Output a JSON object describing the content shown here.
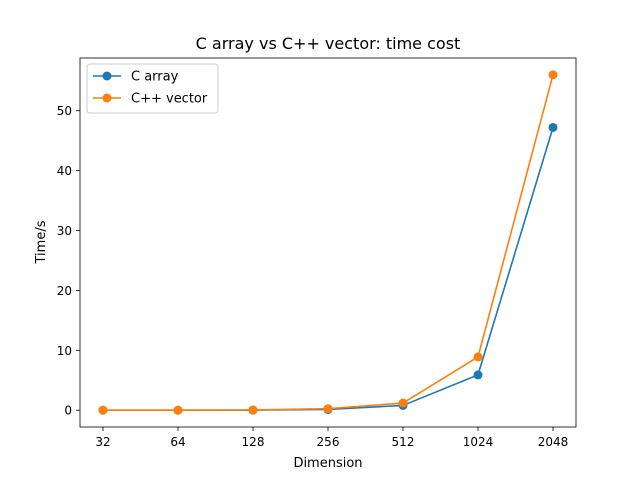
{
  "chart_data": {
    "type": "line",
    "title": "C array vs C++ vector: time cost",
    "xlabel": "Dimension",
    "ylabel": "Time/s",
    "categories": [
      "32",
      "64",
      "128",
      "256",
      "512",
      "1024",
      "2048"
    ],
    "y_ticks": [
      0,
      10,
      20,
      30,
      40,
      50
    ],
    "ylim": [
      -2.8,
      58.8
    ],
    "grid": false,
    "legend_position": "top-left",
    "series": [
      {
        "name": "C array",
        "color": "#1f77b4",
        "marker": "circle",
        "values": [
          0.0,
          0.0,
          0.02,
          0.12,
          0.8,
          5.9,
          47.2
        ]
      },
      {
        "name": "C++ vector",
        "color": "#ff7f0e",
        "marker": "circle",
        "values": [
          0.0,
          0.01,
          0.04,
          0.25,
          1.2,
          8.9,
          56.0
        ]
      }
    ]
  }
}
